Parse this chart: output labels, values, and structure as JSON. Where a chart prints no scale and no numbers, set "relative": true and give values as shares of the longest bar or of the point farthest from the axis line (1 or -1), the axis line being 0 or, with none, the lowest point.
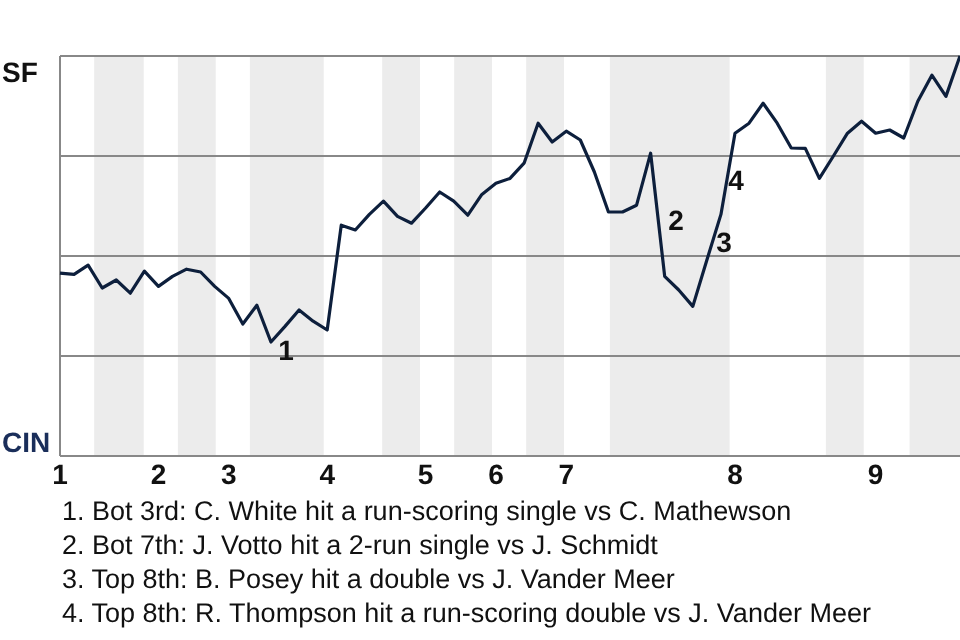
{
  "chart_data": {
    "type": "line",
    "relative": true,
    "categories": [
      "1",
      null,
      null,
      null,
      null,
      null,
      null,
      "2",
      null,
      null,
      null,
      null,
      "3",
      null,
      null,
      null,
      null,
      null,
      null,
      "4",
      null,
      null,
      null,
      null,
      null,
      null,
      "5",
      null,
      null,
      null,
      null,
      "6",
      null,
      null,
      null,
      null,
      "7",
      null,
      null,
      null,
      null,
      null,
      null,
      null,
      null,
      null,
      null,
      null,
      "8",
      null,
      null,
      null,
      null,
      null,
      null,
      null,
      null,
      null,
      "9",
      null,
      null,
      null,
      null,
      null,
      null
    ],
    "grid": "y",
    "marker": "none",
    "line_style": "solid",
    "series": [
      {
        "color": "#0d1f3c",
        "values": [
          0.457,
          0.454,
          0.477,
          0.42,
          0.44,
          0.407,
          0.462,
          0.424,
          0.449,
          0.467,
          0.46,
          0.424,
          0.394,
          0.33,
          0.377,
          0.285,
          0.324,
          0.365,
          0.337,
          0.315,
          0.577,
          0.565,
          0.604,
          0.637,
          0.599,
          0.582,
          0.62,
          0.66,
          0.637,
          0.602,
          0.654,
          0.682,
          0.694,
          0.732,
          0.832,
          0.785,
          0.812,
          0.79,
          0.71,
          0.61,
          0.61,
          0.627,
          0.757,
          0.449,
          0.415,
          0.374,
          0.49,
          0.604,
          0.807,
          0.832,
          0.882,
          0.832,
          0.77,
          0.769,
          0.694,
          0.75,
          0.807,
          0.837,
          0.807,
          0.815,
          0.795,
          0.887,
          0.952,
          0.899,
          1
        ]
      }
    ],
    "annotations": [
      "SF",
      "CIN",
      "1",
      "2",
      "3",
      "4",
      "1. Bot 3rd: C. White hit a run-scoring single vs C. Mathewson",
      "2. Bot 7th: J. Votto hit a 2-run single vs J. Schmidt",
      "3. Top 8th: B. Posey hit a double vs J. Vander Meer",
      "4. Top 8th: R. Thompson hit a run-scoring double vs J. Vander Meer"
    ]
  }
}
